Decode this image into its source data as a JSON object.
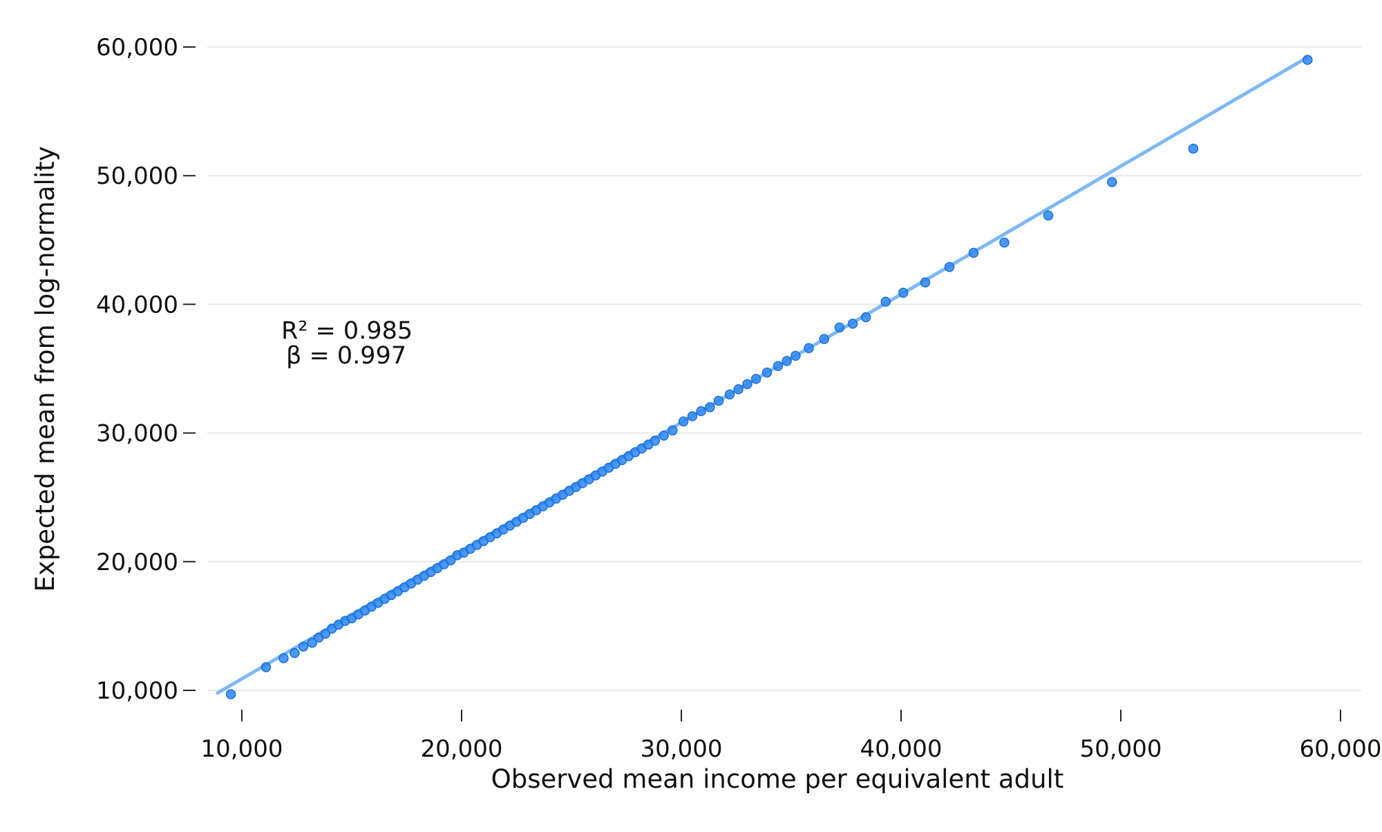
{
  "chart_data": {
    "type": "scatter",
    "title": "",
    "xlabel": "Observed mean income per equivalent adult",
    "ylabel": "Expected mean from log-normality",
    "xlim": [
      9000,
      60000
    ],
    "ylim": [
      9000,
      62000
    ],
    "x_ticks": [
      {
        "value": 10000,
        "label": "10,000"
      },
      {
        "value": 20000,
        "label": "20,000"
      },
      {
        "value": 30000,
        "label": "30,000"
      },
      {
        "value": 40000,
        "label": "40,000"
      },
      {
        "value": 50000,
        "label": "50,000"
      },
      {
        "value": 60000,
        "label": "60,000"
      }
    ],
    "y_ticks": [
      {
        "value": 10000,
        "label": "10,000"
      },
      {
        "value": 20000,
        "label": "20,000"
      },
      {
        "value": 30000,
        "label": "30,000"
      },
      {
        "value": 40000,
        "label": "40,000"
      },
      {
        "value": 50000,
        "label": "50,000"
      },
      {
        "value": 60000,
        "label": "60,000"
      }
    ],
    "grid": "horizontal",
    "annotation": {
      "r2_label": "R² =  0.985",
      "beta_label": "β =  0.997"
    },
    "fit_line": {
      "x": [
        8900,
        58500
      ],
      "y": [
        9800,
        59200
      ]
    },
    "point_color": "#2e86f0",
    "line_color": "#7db8f5",
    "series": [
      {
        "x": [
          9500,
          11100,
          11900,
          12400,
          12800,
          13200,
          13500,
          13800,
          14100,
          14400,
          14700,
          15000,
          15300,
          15600,
          15900,
          16200,
          16500,
          16800,
          17100,
          17400,
          17700,
          18000,
          18300,
          18600,
          18900,
          19200,
          19500,
          19800,
          20100,
          20400,
          20700,
          21000,
          21300,
          21600,
          21900,
          22200,
          22500,
          22800,
          23100,
          23400,
          23700,
          24000,
          24300,
          24600,
          24900,
          25200,
          25500,
          25800,
          26100,
          26400,
          26700,
          27000,
          27300,
          27600,
          27900,
          28200,
          28500,
          28800,
          29200,
          29600,
          30100,
          30500,
          30900,
          31300,
          31700,
          32200,
          32600,
          33000,
          33400,
          33900,
          34400,
          34800,
          35200,
          35800,
          36500,
          37200,
          37800,
          38400,
          39300,
          40100,
          41100,
          42200,
          43300,
          44700,
          46700,
          49600,
          53300,
          58500
        ],
        "y": [
          9700,
          11800,
          12500,
          12900,
          13400,
          13700,
          14100,
          14400,
          14800,
          15100,
          15400,
          15600,
          15900,
          16200,
          16500,
          16800,
          17100,
          17400,
          17700,
          18000,
          18300,
          18600,
          18900,
          19200,
          19500,
          19800,
          20100,
          20500,
          20700,
          21000,
          21300,
          21600,
          21900,
          22200,
          22500,
          22800,
          23100,
          23400,
          23700,
          24000,
          24300,
          24600,
          24900,
          25200,
          25500,
          25800,
          26100,
          26400,
          26700,
          27000,
          27300,
          27600,
          27900,
          28200,
          28500,
          28800,
          29100,
          29400,
          29800,
          30200,
          30900,
          31300,
          31700,
          32000,
          32500,
          33000,
          33400,
          33800,
          34200,
          34700,
          35200,
          35600,
          36000,
          36600,
          37300,
          38200,
          38500,
          39000,
          40200,
          40900,
          41700,
          42900,
          44000,
          44800,
          46900,
          49500,
          52100,
          59000
        ]
      }
    ]
  }
}
